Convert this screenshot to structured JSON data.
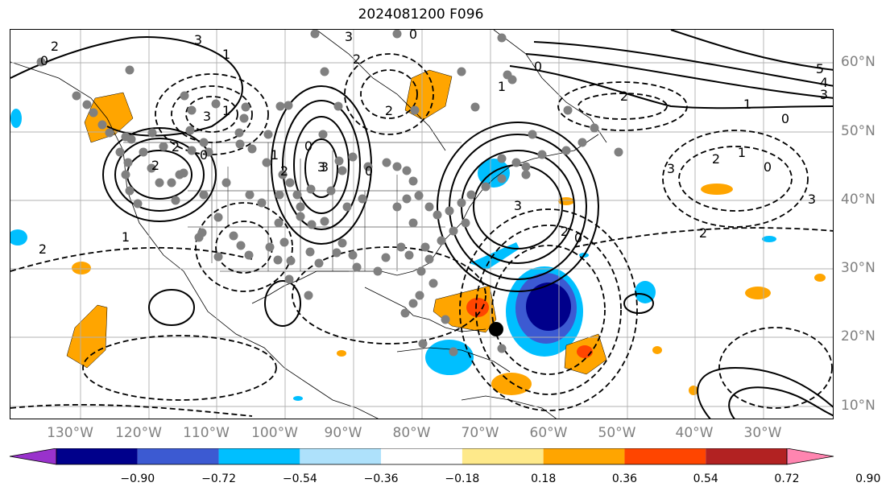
{
  "title": "2024081200 F096",
  "lon_labels": [
    "130°W",
    "120°W",
    "110°W",
    "100°W",
    "90°W",
    "80°W",
    "70°W",
    "60°W",
    "50°W",
    "40°W",
    "30°W"
  ],
  "lat_labels": [
    "60°N",
    "50°N",
    "40°N",
    "30°N",
    "20°N",
    "10°N"
  ],
  "colorbar": {
    "labels": [
      "−0.90",
      "−0.72",
      "−0.54",
      "−0.36",
      "−0.18",
      "0.18",
      "0.36",
      "0.54",
      "0.72",
      "0.90"
    ],
    "colors": [
      "#9932cc",
      "#00008b",
      "#3c5ad2",
      "#00bfff",
      "#aee1fb",
      "#ffffff",
      "#fee98a",
      "#ffa500",
      "#ff4500",
      "#b22222",
      "#ff85b0"
    ]
  },
  "contour_labels": [
    "3",
    "2",
    "0",
    "1",
    "3",
    "2",
    "0",
    "3",
    "2",
    "0",
    "1",
    "2",
    "3",
    "0",
    "1",
    "2",
    "3",
    "0",
    "2",
    "1",
    "0",
    "2",
    "1",
    "0",
    "0",
    "2",
    "3",
    "3",
    "2",
    "0",
    "2",
    "1",
    "3",
    "1",
    "2",
    "5",
    "4",
    "3"
  ],
  "colors": {
    "positive_fill": "#ffa500",
    "strong_positive": "#ff4500",
    "negative_fill": "#00bfff",
    "strong_negative": "#00008b",
    "mid_negative": "#3c5ad2",
    "dots": "#808080",
    "grid": "#b0b0b0"
  }
}
